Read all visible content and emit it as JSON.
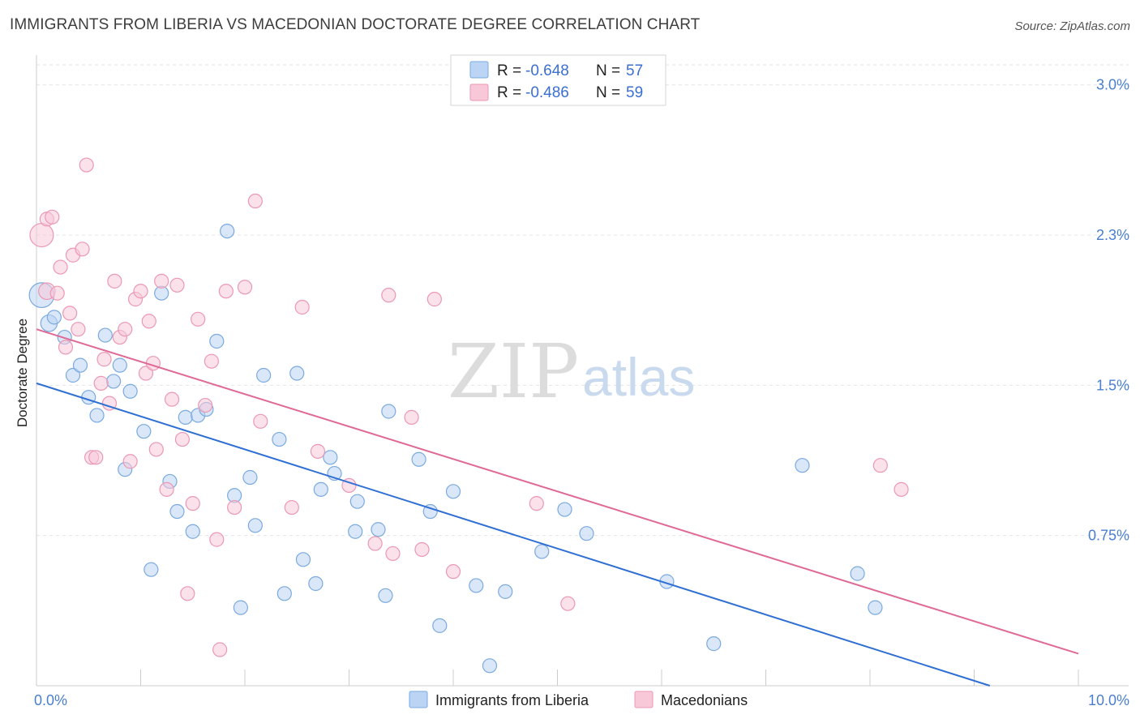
{
  "title": "IMMIGRANTS FROM LIBERIA VS MACEDONIAN DOCTORATE DEGREE CORRELATION CHART",
  "source": "Source: ZipAtlas.com",
  "watermark": {
    "part1": "ZIP",
    "part2": "atlas"
  },
  "legend": {
    "r_label": "R =",
    "n_label": "N =",
    "rows": [
      {
        "r": "-0.648",
        "n": "57"
      },
      {
        "r": "-0.486",
        "n": "59"
      }
    ]
  },
  "chart_data": {
    "type": "scatter",
    "title": "IMMIGRANTS FROM LIBERIA VS MACEDONIAN DOCTORATE DEGREE CORRELATION CHART",
    "xlabel": "",
    "ylabel": "Doctorate Degree",
    "xlim": [
      0,
      10
    ],
    "ylim": [
      0,
      3.1
    ],
    "x_tick_labels": [
      "0.0%",
      "10.0%"
    ],
    "y_ticks": [
      0.75,
      1.5,
      2.25,
      3.0
    ],
    "y_tick_labels": [
      "0.75%",
      "1.5%",
      "2.3%",
      "3.0%"
    ],
    "grid": true,
    "legend_position": "top-center",
    "series": [
      {
        "name": "Immigrants from Liberia",
        "color": "#7aaae0",
        "fill": "#bcd4f3",
        "trend": {
          "x": [
            0,
            9.15
          ],
          "y": [
            1.51,
            0.0
          ]
        },
        "points": [
          {
            "x": 0.05,
            "y": 1.95,
            "s": 1.8
          },
          {
            "x": 0.12,
            "y": 1.81,
            "s": 1.2
          },
          {
            "x": 0.17,
            "y": 1.84
          },
          {
            "x": 0.27,
            "y": 1.74
          },
          {
            "x": 0.35,
            "y": 1.55
          },
          {
            "x": 0.42,
            "y": 1.6
          },
          {
            "x": 0.5,
            "y": 1.44
          },
          {
            "x": 0.58,
            "y": 1.35
          },
          {
            "x": 0.66,
            "y": 1.75
          },
          {
            "x": 0.74,
            "y": 1.52
          },
          {
            "x": 0.8,
            "y": 1.6
          },
          {
            "x": 0.85,
            "y": 1.08
          },
          {
            "x": 0.9,
            "y": 1.47
          },
          {
            "x": 1.03,
            "y": 1.27
          },
          {
            "x": 1.1,
            "y": 0.58
          },
          {
            "x": 1.2,
            "y": 1.96
          },
          {
            "x": 1.28,
            "y": 1.02
          },
          {
            "x": 1.35,
            "y": 0.87
          },
          {
            "x": 1.43,
            "y": 1.34
          },
          {
            "x": 1.5,
            "y": 0.77
          },
          {
            "x": 1.55,
            "y": 1.35
          },
          {
            "x": 1.63,
            "y": 1.38
          },
          {
            "x": 1.73,
            "y": 1.72
          },
          {
            "x": 1.83,
            "y": 2.27
          },
          {
            "x": 1.9,
            "y": 0.95
          },
          {
            "x": 1.96,
            "y": 0.39
          },
          {
            "x": 2.05,
            "y": 1.04
          },
          {
            "x": 2.1,
            "y": 0.8
          },
          {
            "x": 2.18,
            "y": 1.55
          },
          {
            "x": 2.33,
            "y": 1.23
          },
          {
            "x": 2.38,
            "y": 0.46
          },
          {
            "x": 2.5,
            "y": 1.56
          },
          {
            "x": 2.56,
            "y": 0.63
          },
          {
            "x": 2.68,
            "y": 0.51
          },
          {
            "x": 2.73,
            "y": 0.98
          },
          {
            "x": 2.82,
            "y": 1.14
          },
          {
            "x": 2.86,
            "y": 1.06
          },
          {
            "x": 3.06,
            "y": 0.77
          },
          {
            "x": 3.08,
            "y": 0.92
          },
          {
            "x": 3.28,
            "y": 0.78
          },
          {
            "x": 3.35,
            "y": 0.45
          },
          {
            "x": 3.38,
            "y": 1.37
          },
          {
            "x": 3.67,
            "y": 1.13
          },
          {
            "x": 3.78,
            "y": 0.87
          },
          {
            "x": 3.87,
            "y": 0.3
          },
          {
            "x": 4.0,
            "y": 0.97
          },
          {
            "x": 4.22,
            "y": 0.5
          },
          {
            "x": 4.35,
            "y": 0.1
          },
          {
            "x": 4.5,
            "y": 0.47
          },
          {
            "x": 4.85,
            "y": 0.67
          },
          {
            "x": 5.07,
            "y": 0.88
          },
          {
            "x": 5.28,
            "y": 0.76
          },
          {
            "x": 6.05,
            "y": 0.52
          },
          {
            "x": 6.5,
            "y": 0.21
          },
          {
            "x": 7.35,
            "y": 1.1
          },
          {
            "x": 7.88,
            "y": 0.56
          },
          {
            "x": 8.05,
            "y": 0.39
          }
        ]
      },
      {
        "name": "Macedonians",
        "color": "#eb98b4",
        "fill": "#f8c8d8",
        "trend": {
          "x": [
            0,
            10
          ],
          "y": [
            1.78,
            0.16
          ]
        },
        "points": [
          {
            "x": 0.05,
            "y": 2.25,
            "s": 1.7
          },
          {
            "x": 0.1,
            "y": 2.33
          },
          {
            "x": 0.15,
            "y": 2.34
          },
          {
            "x": 0.1,
            "y": 1.97,
            "s": 1.2
          },
          {
            "x": 0.2,
            "y": 1.96
          },
          {
            "x": 0.23,
            "y": 2.09
          },
          {
            "x": 0.28,
            "y": 1.69
          },
          {
            "x": 0.32,
            "y": 1.86
          },
          {
            "x": 0.35,
            "y": 2.15
          },
          {
            "x": 0.4,
            "y": 1.78
          },
          {
            "x": 0.44,
            "y": 2.18
          },
          {
            "x": 0.48,
            "y": 2.6
          },
          {
            "x": 0.53,
            "y": 1.14
          },
          {
            "x": 0.57,
            "y": 1.14
          },
          {
            "x": 0.62,
            "y": 1.51
          },
          {
            "x": 0.65,
            "y": 1.63
          },
          {
            "x": 0.7,
            "y": 1.41
          },
          {
            "x": 0.75,
            "y": 2.02
          },
          {
            "x": 0.8,
            "y": 1.74
          },
          {
            "x": 0.85,
            "y": 1.78
          },
          {
            "x": 0.9,
            "y": 1.12
          },
          {
            "x": 0.95,
            "y": 1.93
          },
          {
            "x": 1.0,
            "y": 1.97
          },
          {
            "x": 1.05,
            "y": 1.56
          },
          {
            "x": 1.08,
            "y": 1.82
          },
          {
            "x": 1.12,
            "y": 1.61
          },
          {
            "x": 1.15,
            "y": 1.18
          },
          {
            "x": 1.2,
            "y": 2.02
          },
          {
            "x": 1.25,
            "y": 0.98
          },
          {
            "x": 1.3,
            "y": 1.43
          },
          {
            "x": 1.35,
            "y": 2.0
          },
          {
            "x": 1.4,
            "y": 1.23
          },
          {
            "x": 1.45,
            "y": 0.46
          },
          {
            "x": 1.5,
            "y": 0.91
          },
          {
            "x": 1.55,
            "y": 1.83
          },
          {
            "x": 1.62,
            "y": 1.4
          },
          {
            "x": 1.68,
            "y": 1.62
          },
          {
            "x": 1.73,
            "y": 0.73
          },
          {
            "x": 1.76,
            "y": 0.18
          },
          {
            "x": 1.82,
            "y": 1.97
          },
          {
            "x": 1.9,
            "y": 0.89
          },
          {
            "x": 2.0,
            "y": 1.99
          },
          {
            "x": 2.1,
            "y": 2.42
          },
          {
            "x": 2.15,
            "y": 1.32
          },
          {
            "x": 2.45,
            "y": 0.89
          },
          {
            "x": 2.55,
            "y": 1.89
          },
          {
            "x": 2.7,
            "y": 1.17
          },
          {
            "x": 3.0,
            "y": 1.0
          },
          {
            "x": 3.25,
            "y": 0.71
          },
          {
            "x": 3.38,
            "y": 1.95
          },
          {
            "x": 3.42,
            "y": 0.66
          },
          {
            "x": 3.6,
            "y": 1.34
          },
          {
            "x": 3.7,
            "y": 0.68
          },
          {
            "x": 3.82,
            "y": 1.93
          },
          {
            "x": 4.0,
            "y": 0.57
          },
          {
            "x": 4.8,
            "y": 0.91
          },
          {
            "x": 5.1,
            "y": 0.41
          },
          {
            "x": 8.1,
            "y": 1.1
          },
          {
            "x": 8.3,
            "y": 0.98
          }
        ]
      }
    ]
  }
}
